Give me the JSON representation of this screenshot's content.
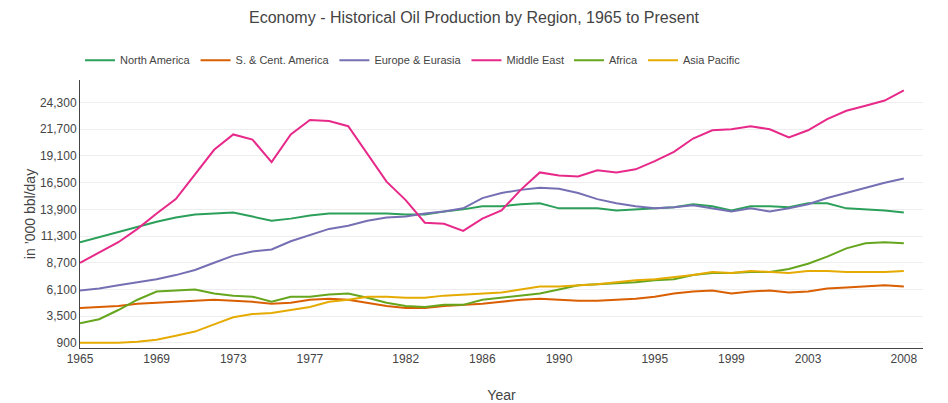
{
  "chart_data": {
    "type": "line",
    "title": "Economy - Historical Oil Production by Region, 1965 to Present",
    "xlabel": "Year",
    "ylabel": "in ’000 bbl/day",
    "x": [
      1965,
      1966,
      1967,
      1968,
      1969,
      1970,
      1971,
      1972,
      1973,
      1974,
      1975,
      1976,
      1977,
      1978,
      1979,
      1980,
      1981,
      1982,
      1983,
      1984,
      1985,
      1986,
      1987,
      1988,
      1989,
      1990,
      1991,
      1992,
      1993,
      1994,
      1995,
      1996,
      1997,
      1998,
      1999,
      2000,
      2001,
      2002,
      2003,
      2004,
      2005,
      2006,
      2007,
      2008
    ],
    "xlim": [
      1965,
      2009
    ],
    "xticks": [
      1965,
      1969,
      1973,
      1977,
      1982,
      1986,
      1990,
      1995,
      1999,
      2003,
      2008
    ],
    "ylim": [
      400,
      26500
    ],
    "yticks": [
      900,
      {
        "value": 3500,
        "label": "3,500"
      },
      {
        "value": 6100,
        "label": "6,100"
      },
      {
        "value": 8700,
        "label": "8,700"
      },
      {
        "value": 11300,
        "label": "11,300"
      },
      {
        "value": 13900,
        "label": "13,900"
      },
      {
        "value": 16500,
        "label": "16,500"
      },
      {
        "value": 19100,
        "label": "19,100"
      },
      {
        "value": 21700,
        "label": "21,700"
      },
      {
        "value": 24300,
        "label": "24,300"
      }
    ],
    "grid": true,
    "legend": "top",
    "series": [
      {
        "name": "North America",
        "color": "#2ca05a",
        "values": [
          10700,
          11200,
          11700,
          12200,
          12700,
          13100,
          13400,
          13500,
          13600,
          13200,
          12800,
          13000,
          13300,
          13500,
          13500,
          13500,
          13500,
          13400,
          13400,
          13700,
          13900,
          14200,
          14200,
          14400,
          14500,
          14000,
          14000,
          14000,
          13800,
          13900,
          14000,
          14100,
          14400,
          14200,
          13800,
          14200,
          14200,
          14100,
          14500,
          14500,
          14000,
          13900,
          13800,
          13600
        ]
      },
      {
        "name": "S. & Cent. America",
        "color": "#d95f02",
        "values": [
          4300,
          4400,
          4500,
          4700,
          4800,
          4900,
          5000,
          5100,
          5000,
          4900,
          4700,
          4800,
          5100,
          5200,
          5100,
          4800,
          4500,
          4300,
          4300,
          4500,
          4600,
          4700,
          4900,
          5100,
          5200,
          5100,
          5000,
          5000,
          5100,
          5200,
          5400,
          5700,
          5900,
          6000,
          5700,
          5900,
          6000,
          5800,
          5900,
          6200,
          6300,
          6400,
          6500,
          6400
        ]
      },
      {
        "name": "Europe & Eurasia",
        "color": "#7570b3",
        "values": [
          6000,
          6200,
          6500,
          6800,
          7100,
          7500,
          8000,
          8700,
          9400,
          9800,
          10000,
          10800,
          11400,
          12000,
          12300,
          12800,
          13100,
          13200,
          13500,
          13700,
          14000,
          15000,
          15500,
          15800,
          16000,
          15900,
          15500,
          14900,
          14500,
          14200,
          14000,
          14100,
          14300,
          14000,
          13700,
          14000,
          13700,
          14000,
          14400,
          15000,
          15500,
          16000,
          16500,
          16900
        ]
      },
      {
        "name": "Middle East",
        "color": "#e7298a",
        "values": [
          8700,
          9700,
          10700,
          12000,
          13500,
          14900,
          17300,
          19700,
          21200,
          20700,
          18500,
          21200,
          22600,
          22500,
          22000,
          19300,
          16600,
          14800,
          12600,
          12500,
          11800,
          13000,
          13800,
          15800,
          17500,
          17200,
          17100,
          17700,
          17500,
          17800,
          18600,
          19500,
          20800,
          21600,
          21700,
          22000,
          21700,
          20900,
          21600,
          22700,
          23500,
          24000,
          24500,
          25500
        ]
      },
      {
        "name": "Africa",
        "color": "#66a61e",
        "values": [
          2800,
          3200,
          4100,
          5100,
          5900,
          6000,
          6100,
          5700,
          5500,
          5400,
          4900,
          5400,
          5400,
          5600,
          5700,
          5300,
          4800,
          4500,
          4400,
          4600,
          4600,
          5100,
          5300,
          5500,
          5700,
          6100,
          6500,
          6600,
          6700,
          6800,
          7000,
          7100,
          7500,
          7700,
          7700,
          7800,
          7800,
          8100,
          8600,
          9300,
          10100,
          10600,
          10700,
          10600
        ]
      },
      {
        "name": "Asia Pacific",
        "color": "#e6ab02",
        "values": [
          900,
          900,
          900,
          1000,
          1200,
          1600,
          2000,
          2700,
          3400,
          3700,
          3800,
          4100,
          4400,
          4900,
          5100,
          5400,
          5400,
          5300,
          5300,
          5500,
          5600,
          5700,
          5800,
          6100,
          6400,
          6400,
          6500,
          6600,
          6800,
          7000,
          7100,
          7300,
          7500,
          7800,
          7700,
          7900,
          7800,
          7700,
          7900,
          7900,
          7800,
          7800,
          7800,
          7900
        ]
      }
    ]
  }
}
